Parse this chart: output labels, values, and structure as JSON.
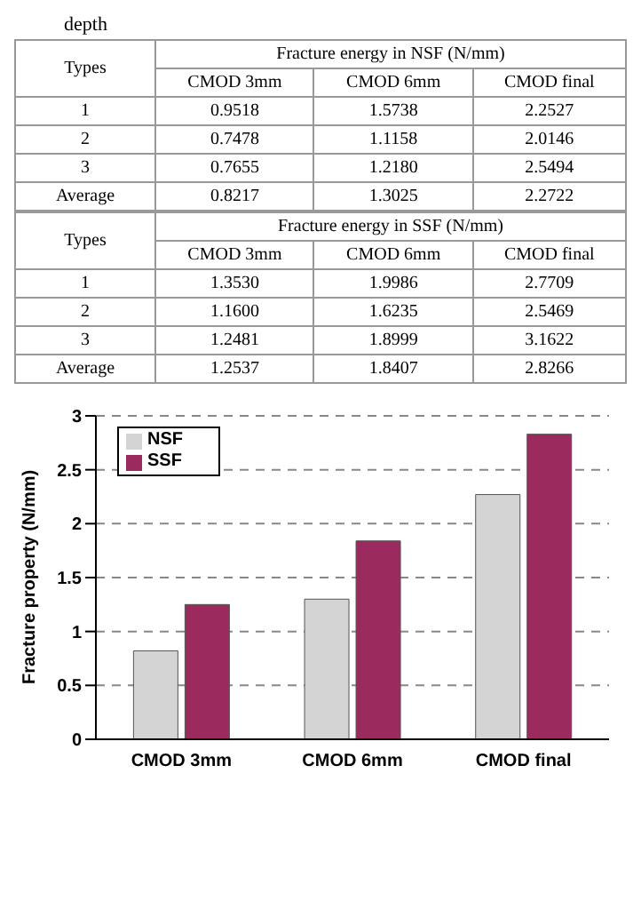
{
  "chart_data": [
    {
      "type": "other",
      "title": "Fracture energy in NSF (N/mm)",
      "ylabel": "Types",
      "annotations": [
        "depth"
      ],
      "categories": [
        "CMOD 3mm",
        "CMOD 6mm",
        "CMOD final"
      ],
      "series": [
        {
          "name": "1",
          "values": [
            0.9518,
            1.5738,
            2.2527
          ],
          "value_labels": [
            "0.9518",
            "1.5738",
            "2.2527"
          ]
        },
        {
          "name": "2",
          "values": [
            0.7478,
            1.1158,
            2.0146
          ],
          "value_labels": [
            "0.7478",
            "1.1158",
            "2.0146"
          ]
        },
        {
          "name": "3",
          "values": [
            0.7655,
            1.218,
            2.5494
          ],
          "value_labels": [
            "0.7655",
            "1.2180",
            "2.5494"
          ]
        },
        {
          "name": "Average",
          "values": [
            0.8217,
            1.3025,
            2.2722
          ],
          "value_labels": [
            "0.8217",
            "1.3025",
            "2.2722"
          ]
        }
      ]
    },
    {
      "type": "other",
      "title": "Fracture energy in SSF (N/mm)",
      "ylabel": "Types",
      "categories": [
        "CMOD 3mm",
        "CMOD 6mm",
        "CMOD final"
      ],
      "series": [
        {
          "name": "1",
          "values": [
            1.353,
            1.9986,
            2.7709
          ],
          "value_labels": [
            "1.3530",
            "1.9986",
            "2.7709"
          ]
        },
        {
          "name": "2",
          "values": [
            1.16,
            1.6235,
            2.5469
          ],
          "value_labels": [
            "1.1600",
            "1.6235",
            "2.5469"
          ]
        },
        {
          "name": "3",
          "values": [
            1.2481,
            1.8999,
            3.1622
          ],
          "value_labels": [
            "1.2481",
            "1.8999",
            "3.1622"
          ]
        },
        {
          "name": "Average",
          "values": [
            1.2537,
            1.8407,
            2.8266
          ],
          "value_labels": [
            "1.2537",
            "1.8407",
            "2.8266"
          ]
        }
      ]
    },
    {
      "type": "bar",
      "ylabel": "Fracture property (N/mm)",
      "categories": [
        "CMOD 3mm",
        "CMOD 6mm",
        "CMOD final"
      ],
      "ylim": [
        0,
        3
      ],
      "yticks": [
        0,
        {
          "value": 0.5,
          "label": "0.5"
        },
        1,
        {
          "value": 1.5,
          "label": "1.5"
        },
        2,
        {
          "value": 2.5,
          "label": "2.5"
        },
        3
      ],
      "grid": "y",
      "line_style": "dashed",
      "legend": "top left",
      "series": [
        {
          "name": "NSF",
          "color": "#d4d4d4",
          "values": [
            0.82,
            1.3,
            2.27
          ]
        },
        {
          "name": "SSF",
          "color": "#9b2b5f",
          "values": [
            1.25,
            1.84,
            2.83
          ]
        }
      ]
    }
  ]
}
